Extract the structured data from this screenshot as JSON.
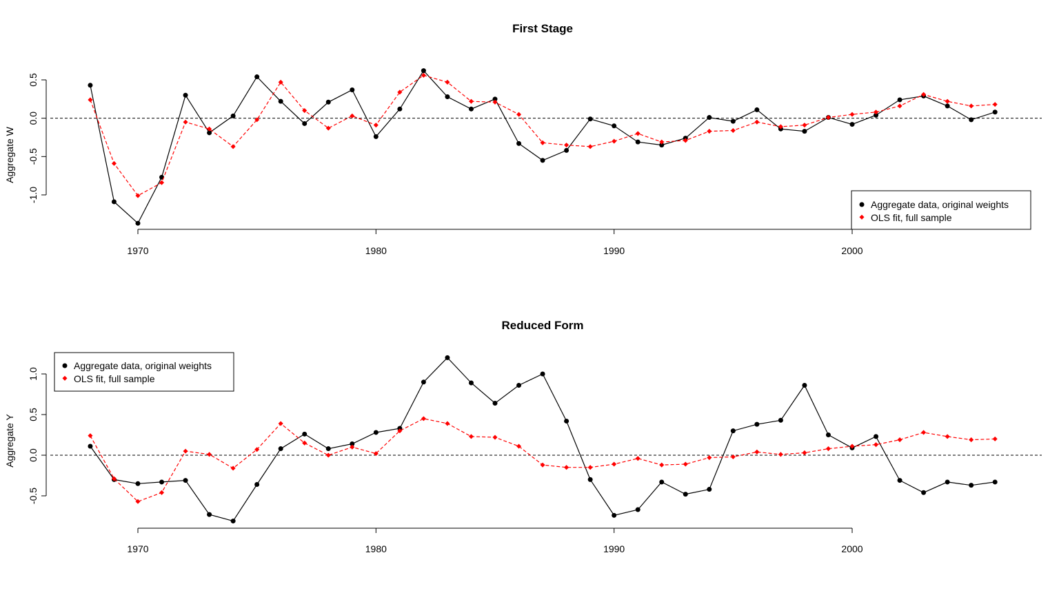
{
  "chart_data": [
    {
      "type": "line",
      "title": "First Stage",
      "xlabel": "",
      "ylabel": "Aggregate W",
      "x": [
        1968,
        1969,
        1970,
        1971,
        1972,
        1973,
        1974,
        1975,
        1976,
        1977,
        1978,
        1979,
        1980,
        1981,
        1982,
        1983,
        1984,
        1985,
        1986,
        1987,
        1988,
        1989,
        1990,
        1991,
        1992,
        1993,
        1994,
        1995,
        1996,
        1997,
        1998,
        1999,
        2000,
        2001,
        2002,
        2003,
        2004,
        2005,
        2006
      ],
      "xticks": [
        1970,
        1980,
        1990,
        2000
      ],
      "yticks": [
        -1.0,
        -0.5,
        0.0,
        0.5
      ],
      "ytick_labels": [
        "-1.0",
        "-0.5",
        "0.0",
        "0.5"
      ],
      "ylim": [
        -1.42,
        0.65
      ],
      "hline": 0,
      "legend_position": "bottom-right",
      "series": [
        {
          "name": "Aggregate data, original weights",
          "color": "#000000",
          "line": "solid",
          "marker": "circle",
          "values": [
            0.43,
            -1.09,
            -1.37,
            -0.77,
            0.3,
            -0.19,
            0.03,
            0.54,
            0.22,
            -0.07,
            0.21,
            0.37,
            -0.24,
            0.12,
            0.62,
            0.28,
            0.12,
            0.25,
            -0.33,
            -0.55,
            -0.42,
            -0.01,
            -0.1,
            -0.31,
            -0.35,
            -0.26,
            0.01,
            -0.04,
            0.11,
            -0.14,
            -0.17,
            0.01,
            -0.08,
            0.04,
            0.24,
            0.29,
            0.16,
            -0.02,
            0.08
          ]
        },
        {
          "name": "OLS fit, full sample",
          "color": "#ff0000",
          "line": "dashed",
          "marker": "diamond",
          "values": [
            0.24,
            -0.59,
            -1.01,
            -0.84,
            -0.05,
            -0.14,
            -0.37,
            -0.02,
            0.47,
            0.1,
            -0.13,
            0.03,
            -0.09,
            0.34,
            0.56,
            0.47,
            0.22,
            0.21,
            0.05,
            -0.32,
            -0.35,
            -0.37,
            -0.3,
            -0.2,
            -0.31,
            -0.29,
            -0.17,
            -0.16,
            -0.05,
            -0.11,
            -0.09,
            0.01,
            0.05,
            0.08,
            0.16,
            0.31,
            0.22,
            0.16,
            0.18
          ]
        }
      ]
    },
    {
      "type": "line",
      "title": "Reduced Form",
      "xlabel": "",
      "ylabel": "Aggregate Y",
      "x": [
        1968,
        1969,
        1970,
        1971,
        1972,
        1973,
        1974,
        1975,
        1976,
        1977,
        1978,
        1979,
        1980,
        1981,
        1982,
        1983,
        1984,
        1985,
        1986,
        1987,
        1988,
        1989,
        1990,
        1991,
        1992,
        1993,
        1994,
        1995,
        1996,
        1997,
        1998,
        1999,
        2000,
        2001,
        2002,
        2003,
        2004,
        2005,
        2006
      ],
      "xticks": [
        1970,
        1980,
        1990,
        2000
      ],
      "yticks": [
        -0.5,
        0.0,
        0.5,
        1.0
      ],
      "ytick_labels": [
        "-0.5",
        "0.0",
        "0.5",
        "1.0"
      ],
      "ylim": [
        -0.82,
        1.2
      ],
      "hline": 0,
      "legend_position": "top-left",
      "series": [
        {
          "name": "Aggregate data, original weights",
          "color": "#000000",
          "line": "solid",
          "marker": "circle",
          "values": [
            0.11,
            -0.3,
            -0.35,
            -0.33,
            -0.31,
            -0.73,
            -0.81,
            -0.36,
            0.08,
            0.26,
            0.08,
            0.14,
            0.28,
            0.33,
            0.9,
            1.2,
            0.89,
            0.64,
            0.86,
            1.0,
            0.42,
            -0.3,
            -0.74,
            -0.67,
            -0.33,
            -0.48,
            -0.42,
            0.3,
            0.38,
            0.43,
            0.86,
            0.25,
            0.09,
            0.23,
            -0.31,
            -0.46,
            -0.33,
            -0.37,
            -0.33
          ]
        },
        {
          "name": "OLS fit, full sample",
          "color": "#ff0000",
          "line": "dashed",
          "marker": "diamond",
          "values": [
            0.24,
            -0.29,
            -0.57,
            -0.46,
            0.05,
            0.01,
            -0.16,
            0.07,
            0.39,
            0.15,
            0.0,
            0.1,
            0.02,
            0.3,
            0.45,
            0.39,
            0.23,
            0.22,
            0.11,
            -0.12,
            -0.15,
            -0.15,
            -0.11,
            -0.04,
            -0.12,
            -0.11,
            -0.03,
            -0.02,
            0.04,
            0.01,
            0.03,
            0.08,
            0.11,
            0.13,
            0.19,
            0.28,
            0.23,
            0.19,
            0.2
          ]
        }
      ]
    }
  ]
}
